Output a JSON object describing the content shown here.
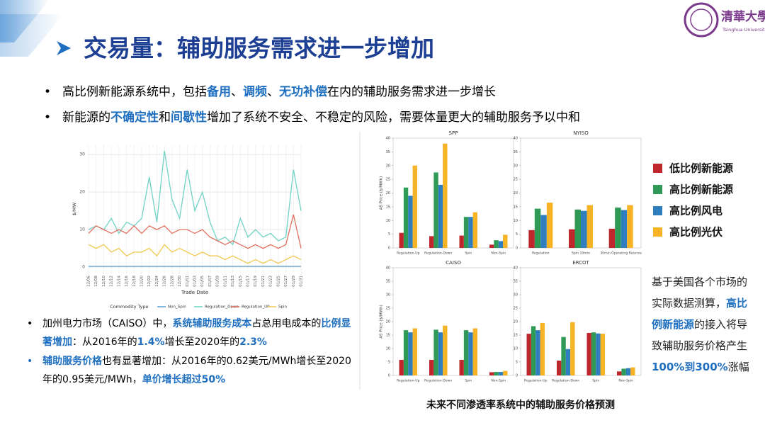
{
  "header": {
    "title": "交易量：辅助服务需求进一步增加",
    "logo_text": "清華大學",
    "logo_subtext": "Tsinghua University"
  },
  "bullets": [
    [
      {
        "text": "高比例新能源系统中，包括"
      },
      {
        "text": "备用",
        "style": "blue"
      },
      {
        "text": "、"
      },
      {
        "text": "调频",
        "style": "blue"
      },
      {
        "text": "、"
      },
      {
        "text": "无功补偿",
        "style": "blue"
      },
      {
        "text": "在内的辅助服务需求进一步增长"
      }
    ],
    [
      {
        "text": "新能源的"
      },
      {
        "text": "不确定性",
        "style": "blue"
      },
      {
        "text": "和"
      },
      {
        "text": "间歇性",
        "style": "blue"
      },
      {
        "text": "增加了系统不安全、不稳定的风险，需要体量更大的辅助服务予以中和"
      }
    ]
  ],
  "bottom_bullets": [
    [
      {
        "text": "加州电力市场（CAISO）中，"
      },
      {
        "text": "系统辅助服务成本",
        "style": "blue"
      },
      {
        "text": "占总用电成本的"
      },
      {
        "text": "比例显著增加",
        "style": "blue"
      },
      {
        "text": "：从2016年的"
      },
      {
        "text": "1.4%",
        "style": "blue"
      },
      {
        "text": "增长至2020年的"
      },
      {
        "text": "2.3%",
        "style": "blue"
      }
    ],
    [
      {
        "text": "辅助服务价格",
        "style": "blue"
      },
      {
        "text": "也有显著增加：从2016年的0.62美元/MWh增长至2020年的0.95美元/MWh，"
      },
      {
        "text": "单价增长超过50%",
        "style": "blue"
      }
    ]
  ],
  "notes": [
    {
      "text": "基于美国各个市场的实际数据测算，"
    },
    {
      "text": "高比例新能源",
      "style": "blue"
    },
    {
      "text": "的接入将导致辅助服务价格产生"
    },
    {
      "text": "100%到300%",
      "style": "blue"
    },
    {
      "text": "涨幅"
    }
  ],
  "caption": "未来不同渗透率系统中的辅助服务价格预测",
  "legend": [
    {
      "name": "低比例新能源",
      "color": "#c0272d"
    },
    {
      "name": "高比例新能源",
      "color": "#2e9a55"
    },
    {
      "name": "高比例风电",
      "color": "#2f7fbf"
    },
    {
      "name": "高比例光伏",
      "color": "#f5b325"
    }
  ],
  "chart_data": [
    {
      "type": "line",
      "ylabel": "$/MW",
      "xlabel": "Trade Date",
      "legend_title": "Commodity Type",
      "grid": true,
      "categories": [
        "12/06",
        "12/08",
        "12/10",
        "12/12",
        "12/14",
        "12/16",
        "12/18",
        "12/20",
        "12/22",
        "12/24",
        "12/26",
        "12/28",
        "12/30",
        "01/01",
        "01/03",
        "01/05",
        "01/07",
        "01/09",
        "01/11",
        "01/13",
        "01/15",
        "01/17",
        "01/19",
        "01/21",
        "01/23",
        "01/25",
        "01/27",
        "01/29",
        "01/31"
      ],
      "ylim": [
        -1.5,
        32.5
      ],
      "yticks": [
        0,
        10,
        20,
        30
      ],
      "series": [
        {
          "name": "Non_Spin",
          "color": "#5b9fd0",
          "values": [
            0.2,
            0.2,
            0.2,
            0.2,
            0.2,
            0.2,
            0.2,
            0.2,
            0.2,
            0.2,
            0.2,
            0.2,
            0.2,
            0.2,
            0.2,
            0.2,
            0.2,
            0.2,
            0.2,
            0.2,
            0.2,
            0.2,
            0.2,
            0.2,
            0.2,
            0.2,
            0.2,
            0.2,
            0.2
          ]
        },
        {
          "name": "Regulation_Down",
          "color": "#6fd3c4",
          "values": [
            10,
            11,
            10,
            13,
            9,
            12,
            11,
            13,
            24,
            12,
            31,
            18,
            13,
            26,
            15,
            20,
            12,
            7,
            8,
            6,
            13,
            8,
            10,
            8,
            9,
            7,
            8,
            26,
            15
          ]
        },
        {
          "name": "Regulation_UP",
          "color": "#e07060",
          "values": [
            9,
            11,
            10,
            9,
            10,
            9,
            11,
            9,
            11,
            10,
            11,
            9,
            10,
            10,
            9,
            10,
            8,
            7,
            6,
            7,
            6,
            5,
            6,
            5,
            6,
            5,
            6,
            14,
            5
          ]
        },
        {
          "name": "Spin",
          "color": "#f0c850",
          "values": [
            6,
            5,
            6,
            4,
            5,
            3,
            4,
            4,
            5,
            3,
            6,
            4,
            5,
            4,
            3,
            4,
            3,
            3,
            2,
            3,
            2,
            1,
            2,
            1,
            2,
            1,
            2,
            3,
            2
          ]
        }
      ]
    },
    {
      "type": "bar",
      "title": "SPP",
      "ylabel": "AS Price ($/MWh)",
      "categories": [
        "Regulation-Up",
        "Regulation-Down",
        "Spin",
        "Non-Spin"
      ],
      "ylim": [
        0,
        40
      ],
      "yticks": [
        0,
        5,
        10,
        15,
        20,
        25,
        30,
        35,
        40
      ],
      "series": [
        {
          "values": [
            5.5,
            4.3,
            4.5,
            1.2
          ]
        },
        {
          "values": [
            22,
            27.5,
            11.3,
            2.8
          ]
        },
        {
          "values": [
            19,
            23,
            11.3,
            2.5
          ]
        },
        {
          "values": [
            30,
            38,
            13,
            4.8
          ]
        }
      ]
    },
    {
      "type": "bar",
      "title": "NYISO",
      "categories": [
        "Regulation",
        "Spin 10min",
        "30min Operating Reserve"
      ],
      "ylim": [
        0,
        40
      ],
      "yticks": [
        0,
        5,
        10,
        15,
        20,
        25,
        30,
        35,
        40
      ],
      "series": [
        {
          "values": [
            6.5,
            6.8,
            7
          ]
        },
        {
          "values": [
            14.3,
            14,
            14.7
          ]
        },
        {
          "values": [
            12,
            13.5,
            13.8
          ]
        },
        {
          "values": [
            16.5,
            15.6,
            15.6
          ]
        }
      ]
    },
    {
      "type": "bar",
      "title": "CAISO",
      "ylabel": "AS Price ($/MWh)",
      "categories": [
        "Regulation-Up",
        "Regulation-Down",
        "Spin",
        "Non-Spin"
      ],
      "ylim": [
        0,
        40
      ],
      "yticks": [
        0,
        5,
        10,
        15,
        20,
        25,
        30,
        35,
        40
      ],
      "series": [
        {
          "values": [
            5.8,
            5.8,
            5.8,
            1.2
          ]
        },
        {
          "values": [
            16.8,
            17,
            16.8,
            1.3
          ]
        },
        {
          "values": [
            16,
            16,
            16,
            1.3
          ]
        },
        {
          "values": [
            17.5,
            18.5,
            17.5,
            1.7
          ]
        }
      ]
    },
    {
      "type": "bar",
      "title": "ERCOT",
      "categories": [
        "Regulation-Up",
        "Regulation-Down",
        "Spin",
        "Non-Spin"
      ],
      "ylim": [
        0,
        40
      ],
      "yticks": [
        0,
        5,
        10,
        15,
        20,
        25,
        30,
        35,
        40
      ],
      "series": [
        {
          "values": [
            15.5,
            5.5,
            15.8,
            1.5
          ]
        },
        {
          "values": [
            18.3,
            14.3,
            16,
            2.5
          ]
        },
        {
          "values": [
            16.8,
            9.8,
            15.6,
            2.7
          ]
        },
        {
          "values": [
            19.5,
            19.8,
            15.5,
            3
          ]
        }
      ]
    }
  ]
}
